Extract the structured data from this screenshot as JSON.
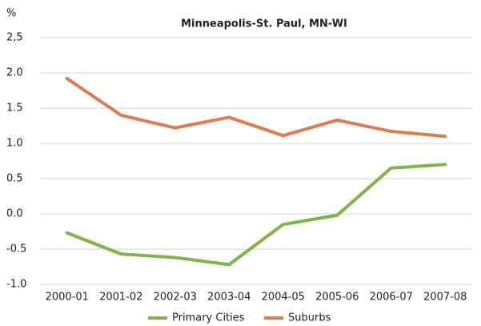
{
  "chart_data": {
    "type": "line",
    "title": "Minneapolis-St. Paul, MN-WI",
    "y_label": "%",
    "categories": [
      "2000-01",
      "2001-02",
      "2002-03",
      "2003-04",
      "2004-05",
      "2005-06",
      "2006-07",
      "2007-08"
    ],
    "series": [
      {
        "name": "Primary Cities",
        "color": "#7ab648",
        "values": [
          -0.27,
          -0.57,
          -0.62,
          -0.72,
          -0.15,
          -0.02,
          0.65,
          0.7
        ]
      },
      {
        "name": "Suburbs",
        "color": "#e07b4a",
        "values": [
          1.92,
          1.4,
          1.22,
          1.37,
          1.11,
          1.33,
          1.17,
          1.1
        ]
      }
    ],
    "ylim": [
      -1.0,
      2.5
    ],
    "yticks": [
      {
        "value": -1.0,
        "label": "-1.0"
      },
      {
        "value": -0.5,
        "label": "-0.5"
      },
      {
        "value": 0.0,
        "label": "0.0"
      },
      {
        "value": 0.5,
        "label": "0.5"
      },
      {
        "value": 1.0,
        "label": "1.0"
      },
      {
        "value": 1.5,
        "label": "1.5"
      },
      {
        "value": 2.0,
        "label": "2.0"
      },
      {
        "value": 2.5,
        "label": "2,5"
      }
    ],
    "grid": true
  }
}
